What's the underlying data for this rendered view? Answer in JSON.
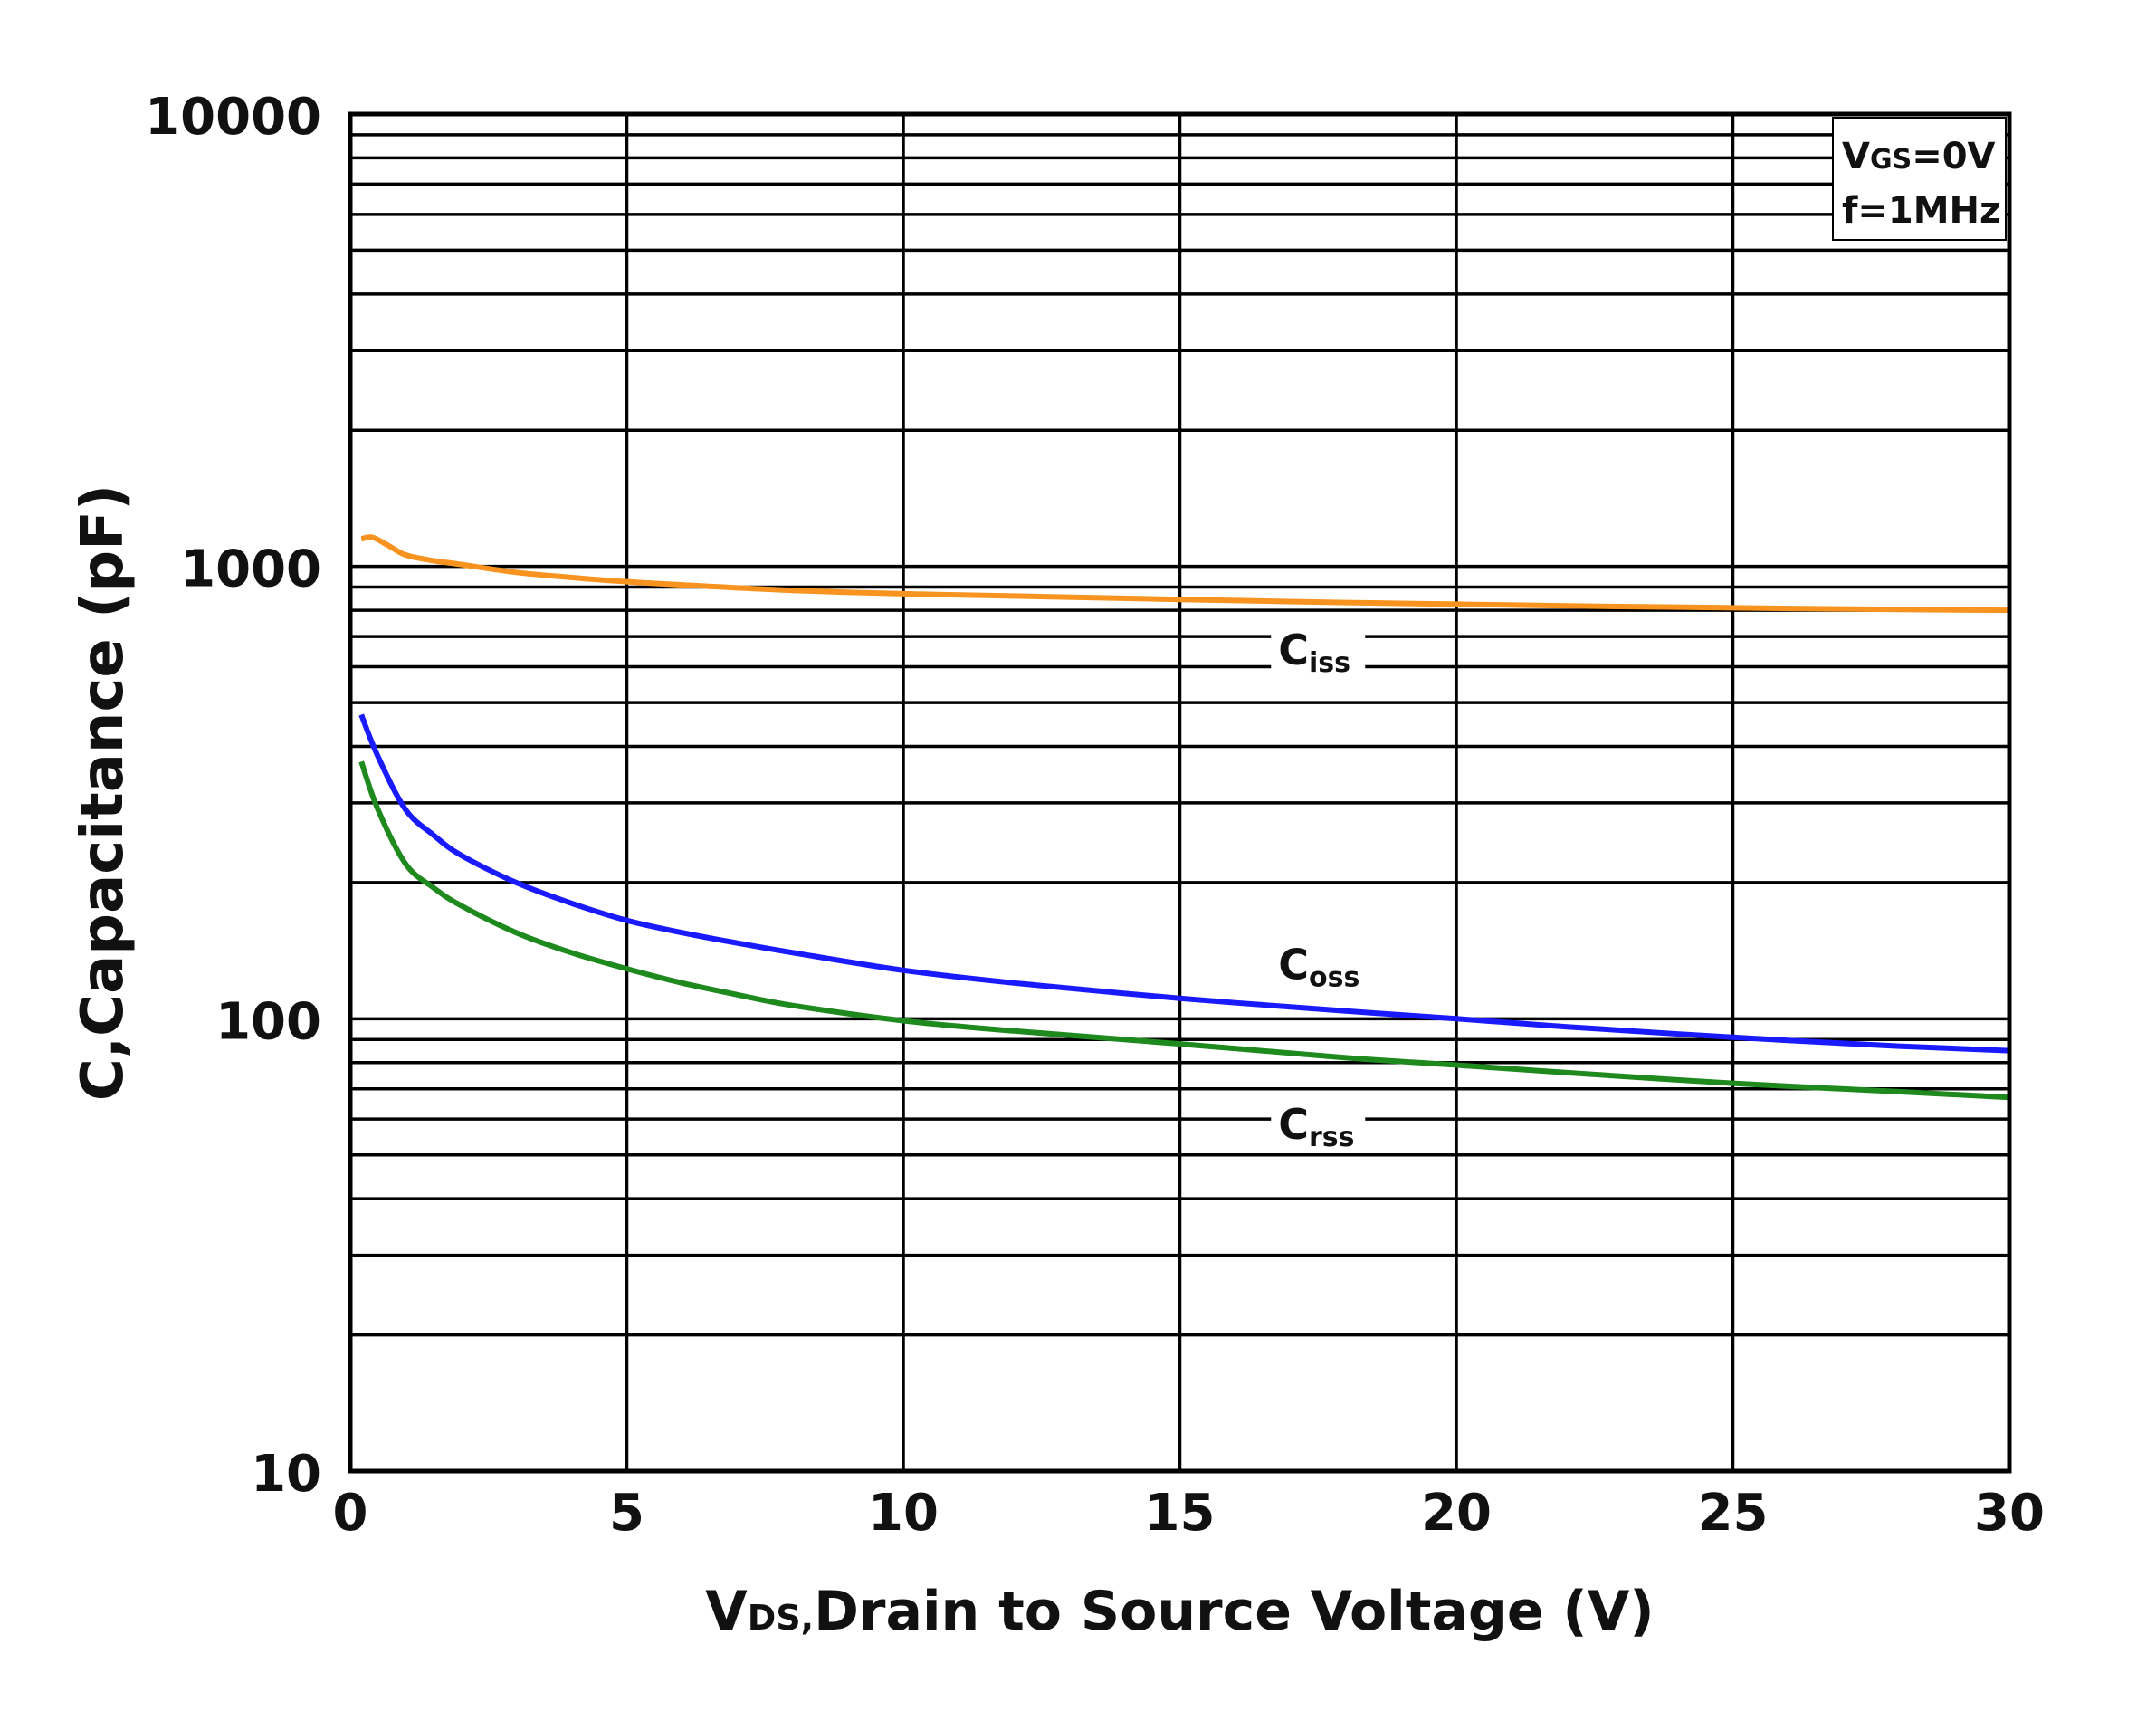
{
  "chart_data": {
    "type": "line",
    "y_scale": "log",
    "xlabel": {
      "main": "V",
      "sub": "DS,",
      "rest": "Drain to Source Voltage (V)"
    },
    "ylabel": "C,Capacitance (pF)",
    "xlim": [
      0,
      30
    ],
    "ylim": [
      10,
      10000
    ],
    "x_ticks": [
      0,
      5,
      10,
      15,
      20,
      25,
      30
    ],
    "x_tick_labels": [
      "0",
      "5",
      "10",
      "15",
      "20",
      "25",
      "30"
    ],
    "y_ticks": [
      10,
      100,
      1000,
      10000
    ],
    "y_tick_labels": [
      "10",
      "100",
      "1000",
      "10000"
    ],
    "grid": true,
    "conditions": {
      "line1": {
        "main": "V",
        "sub": "GS",
        "rest": "=0V"
      },
      "line2": "f=1MHz",
      "placement": "top-right"
    },
    "series": [
      {
        "name": "Ciss",
        "label_main": "C",
        "label_sub": "iss",
        "color": "#f7931e",
        "x": [
          0.2,
          0.4,
          0.7,
          1.0,
          1.5,
          2.0,
          3.0,
          4.0,
          5.0,
          6.0,
          8.0,
          10.0,
          12.0,
          15.0,
          18.0,
          20.0,
          22.0,
          25.0,
          28.0,
          30.0
        ],
        "y": [
          1150,
          1160,
          1110,
          1060,
          1030,
          1010,
          970,
          945,
          925,
          910,
          885,
          870,
          860,
          845,
          832,
          825,
          818,
          810,
          803,
          800
        ]
      },
      {
        "name": "Coss",
        "label_main": "C",
        "label_sub": "oss",
        "color": "#1a1aff",
        "x": [
          0.2,
          0.5,
          1.0,
          1.5,
          2.0,
          3.0,
          4.0,
          5.0,
          6.0,
          7.0,
          8.0,
          10.0,
          12.0,
          15.0,
          18.0,
          20.0,
          22.0,
          25.0,
          28.0,
          30.0
        ],
        "y": [
          470,
          380,
          290,
          255,
          230,
          200,
          180,
          165,
          155,
          147,
          140,
          128,
          120,
          111,
          104,
          100,
          96,
          91,
          87,
          85
        ]
      },
      {
        "name": "Crss",
        "label_main": "C",
        "label_sub": "rss",
        "color": "#1e8a1e",
        "x": [
          0.2,
          0.5,
          1.0,
          1.5,
          2.0,
          3.0,
          4.0,
          5.0,
          6.0,
          7.0,
          8.0,
          10.0,
          12.0,
          15.0,
          18.0,
          20.0,
          22.0,
          25.0,
          28.0,
          30.0
        ],
        "y": [
          370,
          290,
          220,
          195,
          178,
          155,
          140,
          129,
          120,
          113,
          107,
          99,
          94,
          88,
          82,
          79,
          76,
          72,
          69,
          67
        ]
      }
    ],
    "series_label_positions": [
      {
        "series": "Ciss",
        "x": 17.5,
        "y": 660
      },
      {
        "series": "Coss",
        "x": 17.5,
        "y": 133
      },
      {
        "series": "Crss",
        "x": 17.5,
        "y": 59
      }
    ]
  }
}
